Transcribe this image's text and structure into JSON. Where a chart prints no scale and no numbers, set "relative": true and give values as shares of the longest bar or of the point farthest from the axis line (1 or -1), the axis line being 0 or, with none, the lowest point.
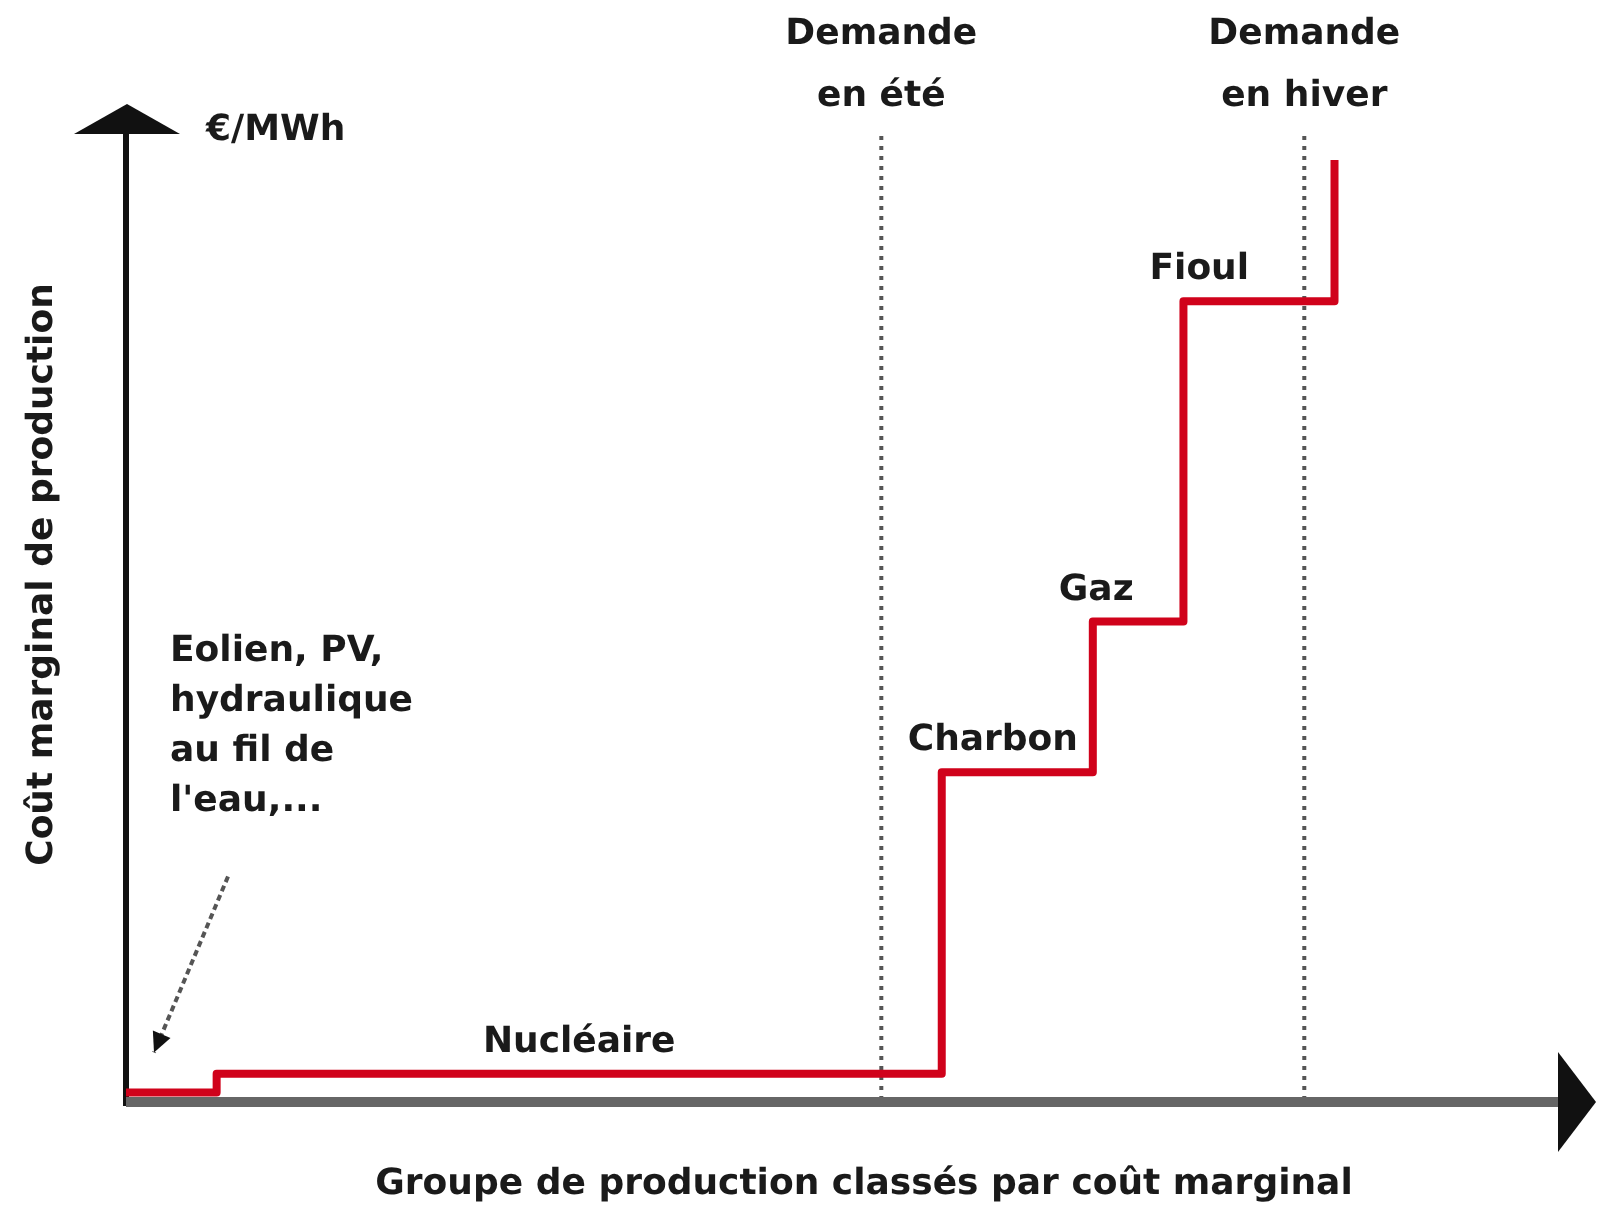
{
  "chart_data": {
    "type": "step",
    "relative": true,
    "categories": [
      null,
      null,
      null,
      null,
      null,
      null,
      null,
      null,
      null,
      null,
      null,
      null,
      null,
      null,
      null,
      null,
      null,
      null,
      null,
      null,
      null,
      null,
      null,
      null,
      null,
      null,
      null,
      null,
      null,
      null,
      null,
      null,
      null,
      null,
      null,
      null,
      null,
      null,
      null,
      null,
      null,
      null,
      null,
      null,
      null,
      null,
      null,
      null
    ],
    "values": [
      0.01,
      0.01,
      0.01,
      0.03,
      0.03,
      0.03,
      0.03,
      0.03,
      0.03,
      0.03,
      0.03,
      0.03,
      0.03,
      0.03,
      0.03,
      0.03,
      0.03,
      0.03,
      0.03,
      0.03,
      0.03,
      0.03,
      0.03,
      0.03,
      0.03,
      0.03,
      0.03,
      0.35,
      0.35,
      0.35,
      0.35,
      0.35,
      0.51,
      0.51,
      0.51,
      0.85,
      0.85,
      0.85,
      0.85,
      0.85,
      1,
      null,
      null,
      null,
      null,
      null,
      null,
      null
    ],
    "color": "#d0021b",
    "xlabel": "Groupe de production classés par coût marginal",
    "ylabel": "Coût marginal de production",
    "annotations": [
      "€/MWh",
      "Demande en été",
      "Demande en hiver",
      "Eolien, PV, hydraulique au fil de l'eau,...",
      {
        "text": "Nucléaire",
        "y": 0.03
      },
      {
        "text": "Charbon",
        "y": 0.35
      },
      {
        "text": "Gaz",
        "y": 0.51
      },
      {
        "text": "Fioul",
        "y": 0.85
      }
    ],
    "legend": false,
    "marker": "none",
    "tick_labels": false
  }
}
